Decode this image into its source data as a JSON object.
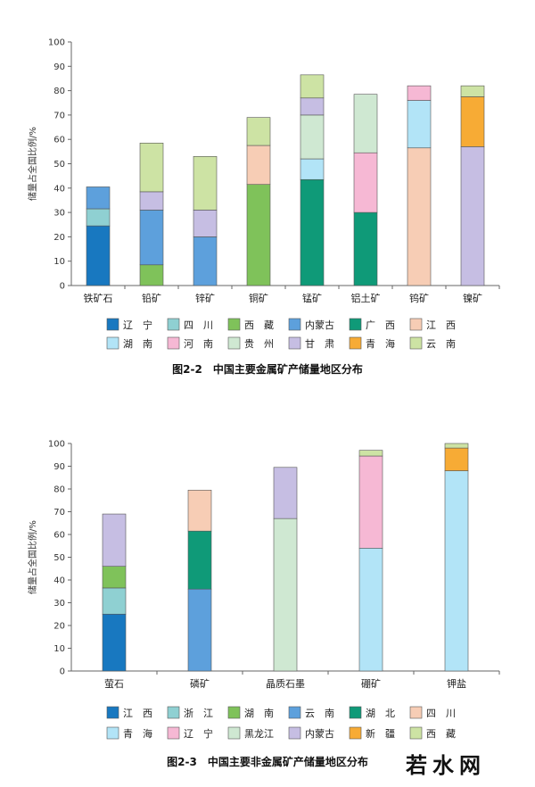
{
  "colors": {
    "辽宁": "#1878c0",
    "四川": "#8fd0d2",
    "西藏": "#7fc25a",
    "内蒙古": "#5da0dc",
    "广西": "#0f9a78",
    "江西": "#f7cdb5",
    "湖南": "#b2e4f7",
    "河南": "#f6b8d4",
    "贵州": "#cfe8d2",
    "甘肃": "#c6bee3",
    "青海": "#f7ab35",
    "云南": "#cde3a4"
  },
  "colors2": {
    "江西": "#1878c0",
    "浙江": "#8fd0d2",
    "湖南": "#7fc25a",
    "云南": "#5da0dc",
    "湖北": "#0f9a78",
    "四川": "#f7cdb5",
    "青海": "#b2e4f7",
    "辽宁": "#f6b8d4",
    "黑龙江": "#cfe8d2",
    "内蒙古": "#c6bee3",
    "新疆": "#f7ab35",
    "西藏": "#cde3a4"
  },
  "chart_data": [
    {
      "type": "bar",
      "stacked": true,
      "title": "图2-2　中国主要金属矿产储量地区分布",
      "ylabel": "储量占全国比例/%",
      "ylim": [
        0,
        100
      ],
      "yticks": [
        0,
        10,
        20,
        30,
        40,
        50,
        60,
        70,
        80,
        90,
        100
      ],
      "categories": [
        "铁矿石",
        "铅矿",
        "锌矿",
        "铜矿",
        "锰矿",
        "铝土矿",
        "钨矿",
        "镍矿"
      ],
      "stacks": [
        [
          {
            "region": "辽宁",
            "value": 24.5
          },
          {
            "region": "四川",
            "value": 7
          },
          {
            "region": "内蒙古",
            "value": 9
          }
        ],
        [
          {
            "region": "西藏",
            "value": 8.5
          },
          {
            "region": "内蒙古",
            "value": 22.5
          },
          {
            "region": "甘肃",
            "value": 7.5
          },
          {
            "region": "云南",
            "value": 20
          }
        ],
        [
          {
            "region": "内蒙古",
            "value": 20
          },
          {
            "region": "甘肃",
            "value": 11
          },
          {
            "region": "云南",
            "value": 22
          }
        ],
        [
          {
            "region": "西藏",
            "value": 41.5
          },
          {
            "region": "江西",
            "value": 16
          },
          {
            "region": "云南",
            "value": 11.5
          }
        ],
        [
          {
            "region": "广西",
            "value": 43.5
          },
          {
            "region": "湖南",
            "value": 8.5
          },
          {
            "region": "贵州",
            "value": 18
          },
          {
            "region": "甘肃",
            "value": 7
          },
          {
            "region": "云南",
            "value": 9.5
          }
        ],
        [
          {
            "region": "广西",
            "value": 30
          },
          {
            "region": "河南",
            "value": 24.5
          },
          {
            "region": "贵州",
            "value": 24
          }
        ],
        [
          {
            "region": "江西",
            "value": 56.5
          },
          {
            "region": "湖南",
            "value": 19.5
          },
          {
            "region": "河南",
            "value": 6
          }
        ],
        [
          {
            "region": "甘肃",
            "value": 57
          },
          {
            "region": "青海",
            "value": 20.5
          },
          {
            "region": "云南",
            "value": 4.5
          }
        ]
      ],
      "legend": [
        "辽宁",
        "四川",
        "西藏",
        "内蒙古",
        "广西",
        "江西",
        "湖南",
        "河南",
        "贵州",
        "甘肃",
        "青海",
        "云南"
      ],
      "legend_labels": [
        "辽　宁",
        "四　川",
        "西　藏",
        "内蒙古",
        "广　西",
        "江　西",
        "湖　南",
        "河　南",
        "贵　州",
        "甘　肃",
        "青　海",
        "云　南"
      ],
      "legend_position": "bottom",
      "grid": false
    },
    {
      "type": "bar",
      "stacked": true,
      "title": "图2-3　中国主要非金属矿产储量地区分布",
      "ylabel": "储量占全国比例/%",
      "ylim": [
        0,
        100
      ],
      "yticks": [
        0,
        10,
        20,
        30,
        40,
        50,
        60,
        70,
        80,
        90,
        100
      ],
      "categories": [
        "萤石",
        "磷矿",
        "晶质石墨",
        "硼矿",
        "钾盐"
      ],
      "stacks": [
        [
          {
            "region": "江西",
            "value": 25
          },
          {
            "region": "浙江",
            "value": 11.5
          },
          {
            "region": "湖南",
            "value": 9.5
          },
          {
            "region": "内蒙古",
            "value": 23
          }
        ],
        [
          {
            "region": "云南",
            "value": 36
          },
          {
            "region": "湖北",
            "value": 25.5
          },
          {
            "region": "四川",
            "value": 18
          }
        ],
        [
          {
            "region": "黑龙江",
            "value": 67
          },
          {
            "region": "内蒙古",
            "value": 22.5
          }
        ],
        [
          {
            "region": "青海",
            "value": 54
          },
          {
            "region": "辽宁",
            "value": 40.5
          },
          {
            "region": "西藏",
            "value": 2.5
          }
        ],
        [
          {
            "region": "青海",
            "value": 88
          },
          {
            "region": "新疆",
            "value": 10
          },
          {
            "region": "西藏",
            "value": 2
          }
        ]
      ],
      "legend": [
        "江西",
        "浙江",
        "湖南",
        "云南",
        "湖北",
        "四川",
        "青海",
        "辽宁",
        "黑龙江",
        "内蒙古",
        "新疆",
        "西藏"
      ],
      "legend_labels": [
        "江　西",
        "浙　江",
        "湖　南",
        "云　南",
        "湖　北",
        "四　川",
        "青　海",
        "辽　宁",
        "黑龙江",
        "内蒙古",
        "新　疆",
        "西　藏"
      ],
      "legend_position": "bottom",
      "grid": false
    }
  ],
  "watermark": {
    "text": "若水网"
  }
}
